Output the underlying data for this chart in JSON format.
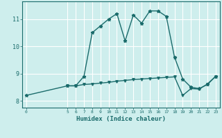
{
  "xlabel": "Humidex (Indice chaleur)",
  "ylabel": "",
  "background_color": "#ceeeed",
  "line_color": "#1a6b6b",
  "grid_color": "#ffffff",
  "xlim": [
    -0.5,
    23.5
  ],
  "ylim": [
    7.75,
    11.65
  ],
  "xticks": [
    0,
    5,
    6,
    7,
    8,
    9,
    10,
    11,
    12,
    13,
    14,
    15,
    16,
    17,
    18,
    19,
    20,
    21,
    22,
    23
  ],
  "yticks": [
    8,
    9,
    10,
    11
  ],
  "line1_x": [
    0,
    5,
    6,
    7,
    8,
    9,
    10,
    11,
    12,
    13,
    14,
    15,
    16,
    17,
    18,
    19,
    20,
    21,
    22,
    23
  ],
  "line1_y": [
    8.2,
    8.55,
    8.55,
    8.9,
    10.5,
    10.75,
    11.0,
    11.2,
    10.2,
    11.15,
    10.85,
    11.3,
    11.3,
    11.1,
    9.6,
    8.8,
    8.5,
    8.45,
    8.6,
    8.9
  ],
  "line2_x": [
    5,
    6,
    7,
    8,
    9,
    10,
    11,
    12,
    13,
    14,
    15,
    16,
    17,
    18,
    19,
    20,
    21,
    22,
    23
  ],
  "line2_y": [
    8.55,
    8.55,
    8.6,
    8.62,
    8.65,
    8.68,
    8.72,
    8.75,
    8.78,
    8.8,
    8.82,
    8.84,
    8.86,
    8.88,
    8.2,
    8.45,
    8.43,
    8.62,
    8.9
  ],
  "marker_size": 3,
  "linewidth": 1.0
}
